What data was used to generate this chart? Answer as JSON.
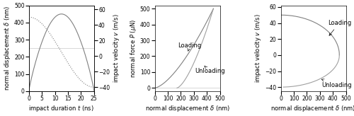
{
  "fig_width": 5.0,
  "fig_height": 1.64,
  "dpi": 100,
  "plot1": {
    "t_max": 25,
    "delta_max": 450,
    "v_max": 50,
    "v_min": -40,
    "xlabel": "impact duration $t$ (ns)",
    "ylabel_left": "normal displacement $\\delta$ (nm)",
    "ylabel_right": "impact velocity $v$ (m/s)",
    "xticks": [
      0,
      5,
      10,
      15,
      20,
      25
    ],
    "yticks_left": [
      0,
      100,
      200,
      300,
      400,
      500
    ],
    "yticks_right": [
      -40,
      -20,
      0,
      20,
      40,
      60
    ],
    "hline_color": "#c8c8c8"
  },
  "plot2": {
    "xlabel": "normal displacement $\\delta$ (nm)",
    "ylabel": "normal force $P$ ($\\mu$N)",
    "xlim": [
      0,
      500
    ],
    "ylim": [
      -20,
      520
    ],
    "xticks": [
      0,
      100,
      200,
      300,
      400,
      500
    ],
    "yticks": [
      0,
      100,
      200,
      300,
      400,
      500
    ],
    "loading_label": "Loading",
    "unloading_label": "Unloading",
    "hline_color": "#c8c8c8"
  },
  "plot3": {
    "xlabel": "normal displacement $\\delta$ (nm)",
    "ylabel": "impact velocity $v$ (m/s)",
    "xlim": [
      0,
      500
    ],
    "ylim": [
      -45,
      62
    ],
    "xticks": [
      0,
      100,
      200,
      300,
      400,
      500
    ],
    "yticks": [
      -40,
      -20,
      0,
      20,
      40,
      60
    ],
    "loading_label": "Loading",
    "unloading_label": "Unloading"
  },
  "line_color": "#808080",
  "line_color2": "#a0a0a0",
  "bg_color": "#ffffff",
  "font_size": 6,
  "label_font_size": 6,
  "tick_font_size": 5.5
}
